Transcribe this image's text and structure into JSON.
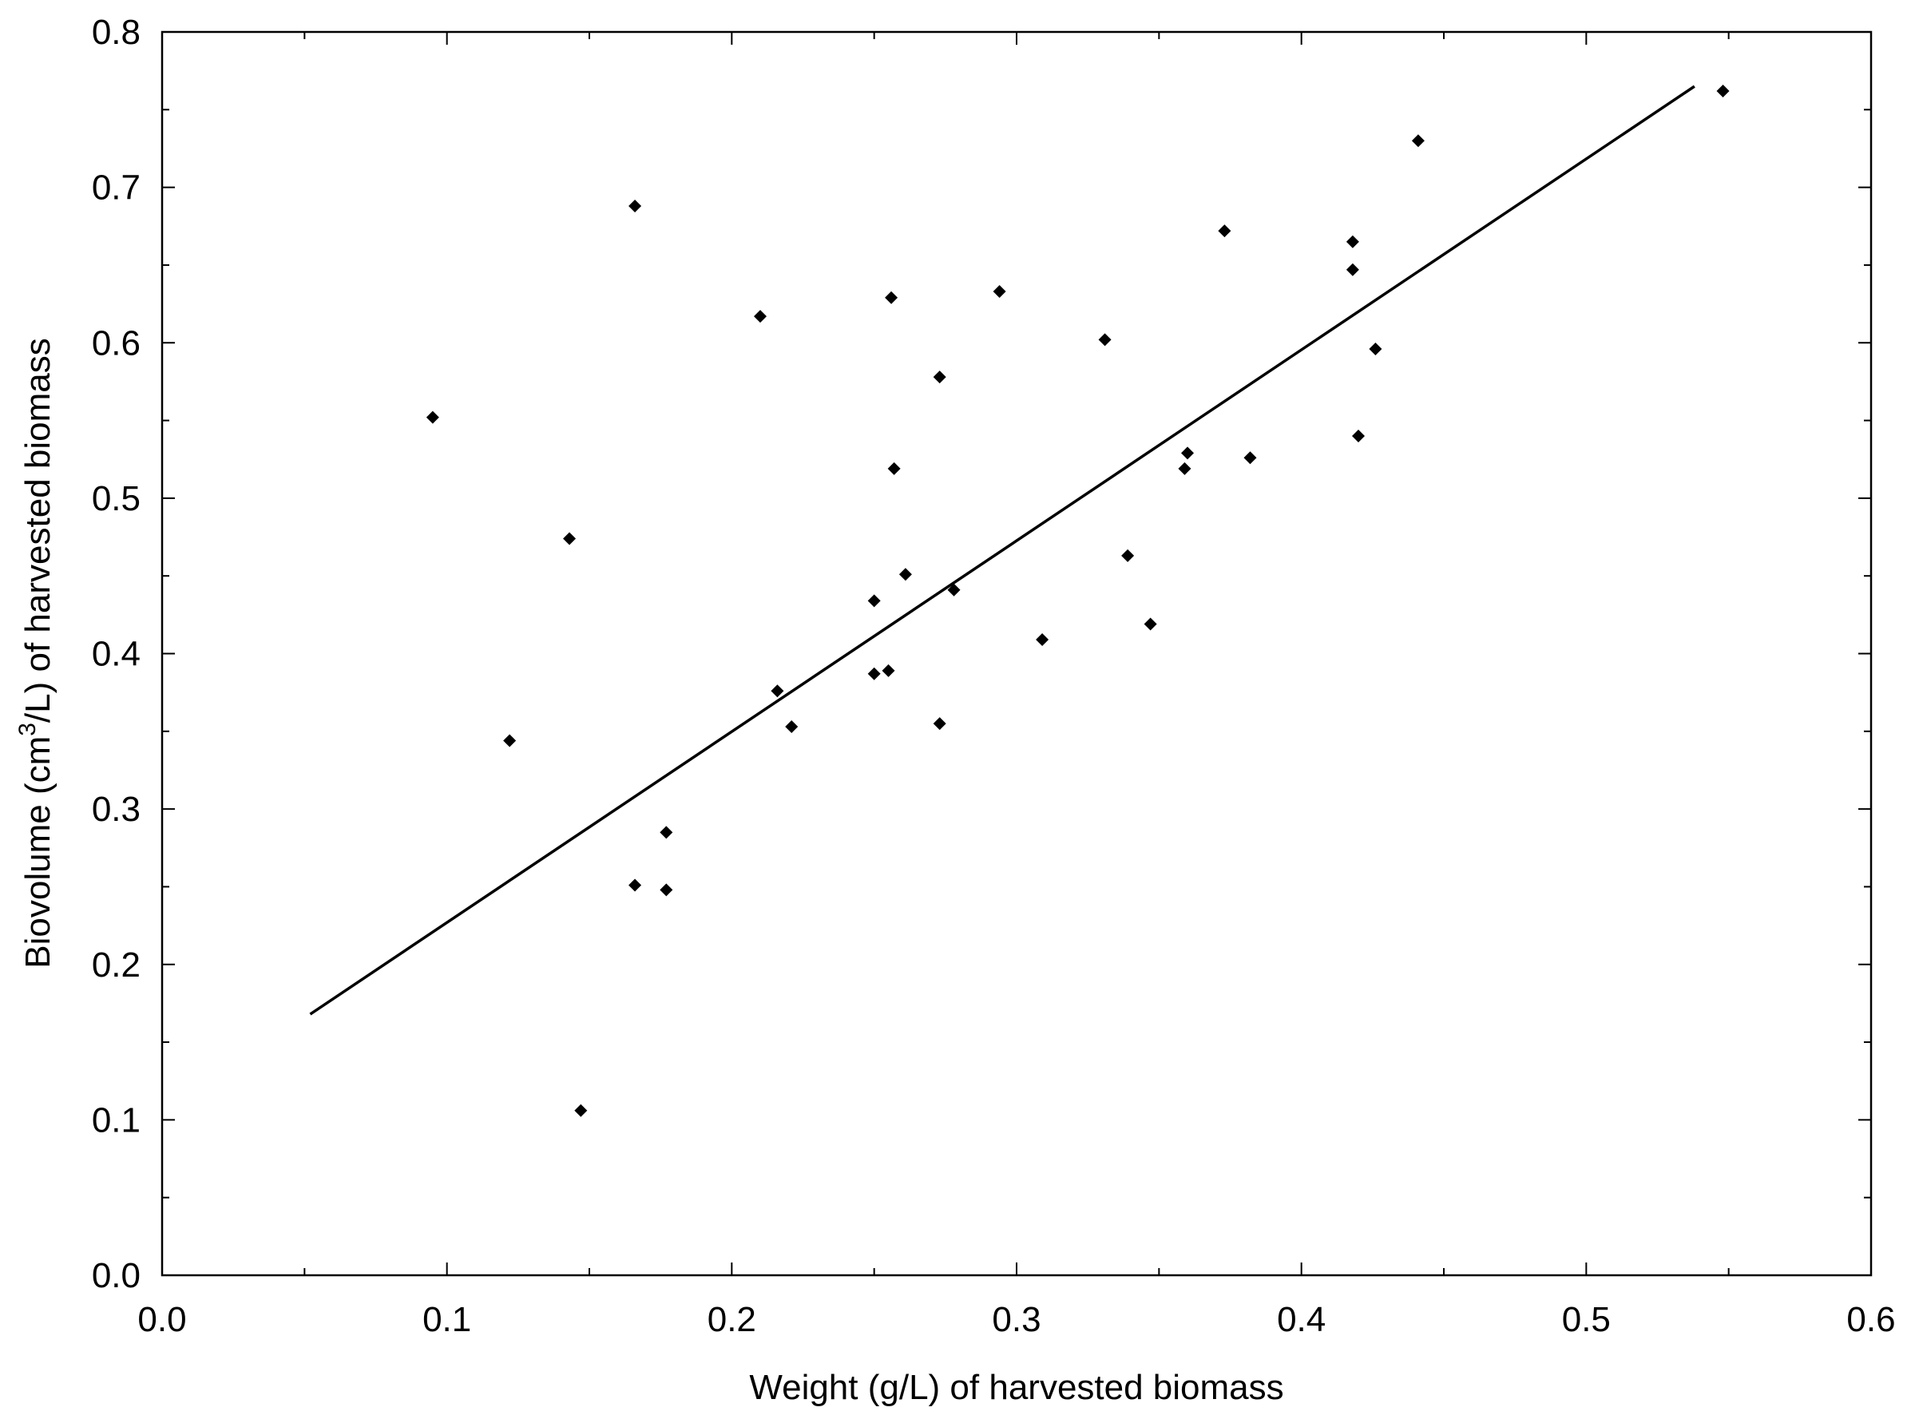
{
  "chart_data": {
    "type": "scatter",
    "title": "",
    "xlabel": "Weight (g/L) of harvested biomass",
    "ylabel_parts": {
      "before": "Biovolume (cm",
      "superscript": "3",
      "after": "/L) of harvested biomass"
    },
    "xlim": [
      0.0,
      0.6
    ],
    "ylim": [
      0.0,
      0.8
    ],
    "x_ticks": [
      0.0,
      0.1,
      0.2,
      0.3,
      0.4,
      0.5,
      0.6
    ],
    "x_tick_labels": [
      "0.0",
      "0.1",
      "0.2",
      "0.3",
      "0.4",
      "0.5",
      "0.6"
    ],
    "y_ticks": [
      0.0,
      0.1,
      0.2,
      0.3,
      0.4,
      0.5,
      0.6,
      0.7,
      0.8
    ],
    "y_tick_labels": [
      "0.0",
      "0.1",
      "0.2",
      "0.3",
      "0.4",
      "0.5",
      "0.6",
      "0.7",
      "0.8"
    ],
    "grid": false,
    "legend": "none",
    "marker": "diamond",
    "series": [
      {
        "points": [
          {
            "x": 0.095,
            "y": 0.552
          },
          {
            "x": 0.122,
            "y": 0.344
          },
          {
            "x": 0.143,
            "y": 0.474
          },
          {
            "x": 0.147,
            "y": 0.106
          },
          {
            "x": 0.166,
            "y": 0.688
          },
          {
            "x": 0.166,
            "y": 0.251
          },
          {
            "x": 0.177,
            "y": 0.285
          },
          {
            "x": 0.177,
            "y": 0.248
          },
          {
            "x": 0.21,
            "y": 0.617
          },
          {
            "x": 0.216,
            "y": 0.376
          },
          {
            "x": 0.221,
            "y": 0.353
          },
          {
            "x": 0.25,
            "y": 0.434
          },
          {
            "x": 0.25,
            "y": 0.387
          },
          {
            "x": 0.255,
            "y": 0.389
          },
          {
            "x": 0.256,
            "y": 0.629
          },
          {
            "x": 0.257,
            "y": 0.519
          },
          {
            "x": 0.261,
            "y": 0.451
          },
          {
            "x": 0.273,
            "y": 0.578
          },
          {
            "x": 0.273,
            "y": 0.355
          },
          {
            "x": 0.278,
            "y": 0.441
          },
          {
            "x": 0.294,
            "y": 0.633
          },
          {
            "x": 0.309,
            "y": 0.409
          },
          {
            "x": 0.331,
            "y": 0.602
          },
          {
            "x": 0.339,
            "y": 0.463
          },
          {
            "x": 0.347,
            "y": 0.419
          },
          {
            "x": 0.359,
            "y": 0.519
          },
          {
            "x": 0.36,
            "y": 0.529
          },
          {
            "x": 0.373,
            "y": 0.672
          },
          {
            "x": 0.382,
            "y": 0.526
          },
          {
            "x": 0.418,
            "y": 0.665
          },
          {
            "x": 0.418,
            "y": 0.647
          },
          {
            "x": 0.42,
            "y": 0.54
          },
          {
            "x": 0.426,
            "y": 0.596
          },
          {
            "x": 0.441,
            "y": 0.73
          },
          {
            "x": 0.548,
            "y": 0.762
          }
        ]
      }
    ],
    "fit_line": {
      "x": [
        0.052,
        0.538
      ],
      "y": [
        0.168,
        0.765
      ]
    },
    "colors": {
      "axis": "#000000",
      "marker": "#000000",
      "fit_line": "#000000",
      "background": "#ffffff"
    }
  }
}
